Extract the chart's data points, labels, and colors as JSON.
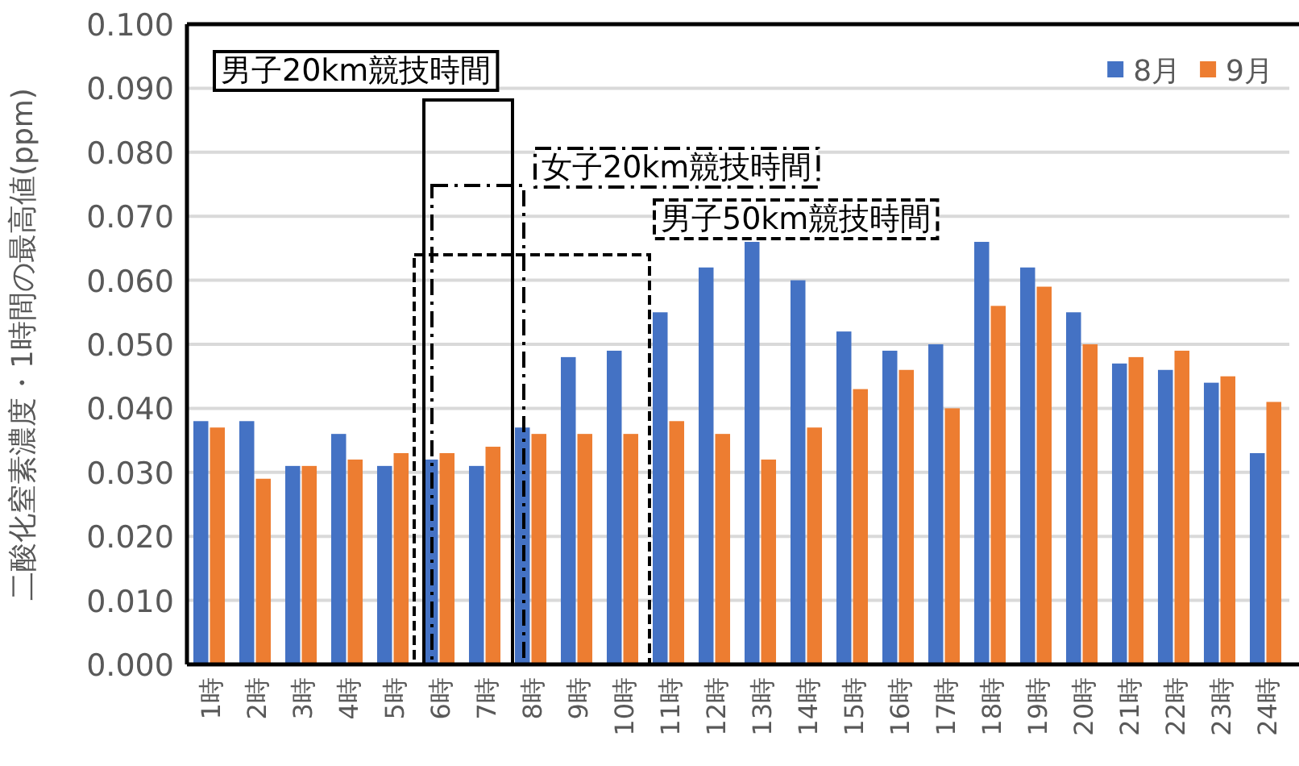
{
  "chart_data": {
    "type": "bar",
    "ylabel": "二酸化窒素濃度・1時間の最高値(ppm)",
    "categories": [
      "1時",
      "2時",
      "3時",
      "4時",
      "5時",
      "6時",
      "7時",
      "8時",
      "9時",
      "10時",
      "11時",
      "12時",
      "13時",
      "14時",
      "15時",
      "16時",
      "17時",
      "18時",
      "19時",
      "20時",
      "21時",
      "22時",
      "23時",
      "24時"
    ],
    "series": [
      {
        "name": "8月",
        "color": "#4472c4",
        "values": [
          0.038,
          0.038,
          0.031,
          0.036,
          0.031,
          0.032,
          0.031,
          0.037,
          0.048,
          0.049,
          0.055,
          0.062,
          0.066,
          0.06,
          0.052,
          0.049,
          0.05,
          0.066,
          0.062,
          0.055,
          0.047,
          0.046,
          0.044,
          0.033
        ]
      },
      {
        "name": "9月",
        "color": "#ed7d31",
        "values": [
          0.037,
          0.029,
          0.031,
          0.032,
          0.033,
          0.033,
          0.034,
          0.036,
          0.036,
          0.036,
          0.038,
          0.036,
          0.032,
          0.037,
          0.043,
          0.046,
          0.04,
          0.056,
          0.059,
          0.05,
          0.048,
          0.049,
          0.045,
          0.041
        ]
      }
    ],
    "ylim": [
      0,
      0.1
    ],
    "yticks": [
      {
        "value": 0,
        "label": "0.000"
      },
      {
        "value": 0.01,
        "label": "0.010"
      },
      {
        "value": 0.02,
        "label": "0.020"
      },
      {
        "value": 0.03,
        "label": "0.030"
      },
      {
        "value": 0.04,
        "label": "0.040"
      },
      {
        "value": 0.05,
        "label": "0.050"
      },
      {
        "value": 0.06,
        "label": "0.060"
      },
      {
        "value": 0.07,
        "label": "0.070"
      },
      {
        "value": 0.08,
        "label": "0.080"
      },
      {
        "value": 0.09,
        "label": "0.090"
      },
      {
        "value": 0.1,
        "label": "0.100"
      }
    ],
    "annotations": [
      "男子20km競技時間",
      "女子20km競技時間",
      "男子50km競技時間"
    ],
    "grid": "y",
    "legend": "top right"
  }
}
